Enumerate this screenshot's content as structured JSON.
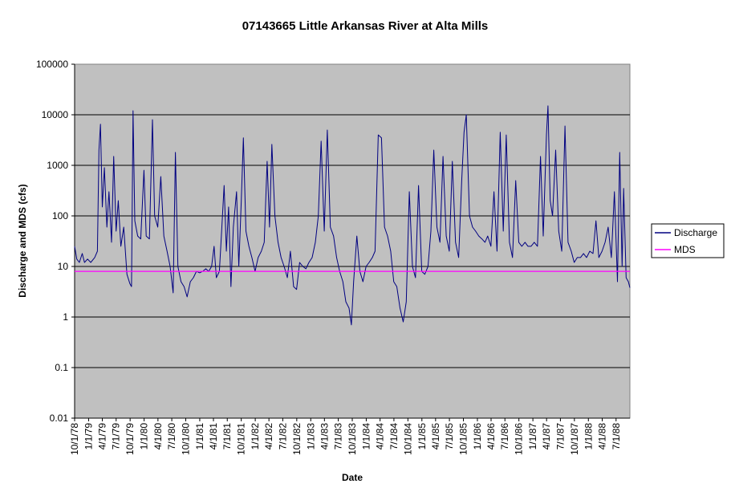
{
  "chart_data": {
    "type": "line",
    "title": "07143665 Little Arkansas River at Alta Mills",
    "xlabel": "Date",
    "ylabel": "Discharge and MDS (cfs)",
    "y_scale": "log",
    "ylim": [
      0.01,
      100000
    ],
    "y_ticks": [
      "0.01",
      "0.1",
      "1",
      "10",
      "100",
      "1000",
      "10000",
      "100000"
    ],
    "y_tick_values": [
      0.01,
      0.1,
      1,
      10,
      100,
      1000,
      10000,
      100000
    ],
    "xlim": [
      "1978-10-01",
      "1988-09-30"
    ],
    "x_ticks": [
      {
        "label": "10/1/78",
        "date": "1978-10-01"
      },
      {
        "label": "1/1/79",
        "date": "1979-01-01"
      },
      {
        "label": "4/1/79",
        "date": "1979-04-01"
      },
      {
        "label": "7/1/79",
        "date": "1979-07-01"
      },
      {
        "label": "10/1/79",
        "date": "1979-10-01"
      },
      {
        "label": "1/1/80",
        "date": "1980-01-01"
      },
      {
        "label": "4/1/80",
        "date": "1980-04-01"
      },
      {
        "label": "7/1/80",
        "date": "1980-07-01"
      },
      {
        "label": "10/1/80",
        "date": "1980-10-01"
      },
      {
        "label": "1/1/81",
        "date": "1981-01-01"
      },
      {
        "label": "4/1/81",
        "date": "1981-04-01"
      },
      {
        "label": "7/1/81",
        "date": "1981-07-01"
      },
      {
        "label": "10/1/81",
        "date": "1981-10-01"
      },
      {
        "label": "1/1/82",
        "date": "1982-01-01"
      },
      {
        "label": "4/1/82",
        "date": "1982-04-01"
      },
      {
        "label": "7/1/82",
        "date": "1982-07-01"
      },
      {
        "label": "10/1/82",
        "date": "1982-10-01"
      },
      {
        "label": "1/1/83",
        "date": "1983-01-01"
      },
      {
        "label": "4/1/83",
        "date": "1983-04-01"
      },
      {
        "label": "7/1/83",
        "date": "1983-07-01"
      },
      {
        "label": "10/1/83",
        "date": "1983-10-01"
      },
      {
        "label": "1/1/84",
        "date": "1984-01-01"
      },
      {
        "label": "4/1/84",
        "date": "1984-04-01"
      },
      {
        "label": "7/1/84",
        "date": "1984-07-01"
      },
      {
        "label": "10/1/84",
        "date": "1984-10-01"
      },
      {
        "label": "1/1/85",
        "date": "1985-01-01"
      },
      {
        "label": "4/1/85",
        "date": "1985-04-01"
      },
      {
        "label": "7/1/85",
        "date": "1985-07-01"
      },
      {
        "label": "10/1/85",
        "date": "1985-10-01"
      },
      {
        "label": "1/1/86",
        "date": "1986-01-01"
      },
      {
        "label": "4/1/86",
        "date": "1986-04-01"
      },
      {
        "label": "7/1/86",
        "date": "1986-07-01"
      },
      {
        "label": "10/1/86",
        "date": "1986-10-01"
      },
      {
        "label": "1/1/87",
        "date": "1987-01-01"
      },
      {
        "label": "4/1/87",
        "date": "1987-04-01"
      },
      {
        "label": "7/1/87",
        "date": "1987-07-01"
      },
      {
        "label": "10/1/87",
        "date": "1987-10-01"
      },
      {
        "label": "1/1/88",
        "date": "1988-01-01"
      },
      {
        "label": "4/1/88",
        "date": "1988-04-01"
      },
      {
        "label": "7/1/88",
        "date": "1988-07-01"
      }
    ],
    "grid": "horizontal major gridlines",
    "legend_position": "right",
    "series": [
      {
        "name": "Discharge",
        "color": "#000080",
        "points": [
          [
            "1978-10-01",
            25
          ],
          [
            "1978-10-15",
            14
          ],
          [
            "1978-11-01",
            12
          ],
          [
            "1978-11-20",
            18
          ],
          [
            "1978-12-05",
            12
          ],
          [
            "1978-12-25",
            14
          ],
          [
            "1979-01-15",
            12
          ],
          [
            "1979-02-10",
            15
          ],
          [
            "1979-02-28",
            20
          ],
          [
            "1979-03-10",
            2000
          ],
          [
            "1979-03-20",
            6500
          ],
          [
            "1979-04-01",
            150
          ],
          [
            "1979-04-15",
            900
          ],
          [
            "1979-05-01",
            60
          ],
          [
            "1979-05-15",
            300
          ],
          [
            "1979-06-01",
            30
          ],
          [
            "1979-06-15",
            1500
          ],
          [
            "1979-07-01",
            50
          ],
          [
            "1979-07-15",
            200
          ],
          [
            "1979-08-01",
            25
          ],
          [
            "1979-08-20",
            60
          ],
          [
            "1979-09-10",
            7
          ],
          [
            "1979-09-30",
            4.5
          ],
          [
            "1979-10-10",
            4
          ],
          [
            "1979-10-20",
            12000
          ],
          [
            "1979-11-01",
            80
          ],
          [
            "1979-11-20",
            40
          ],
          [
            "1979-12-10",
            35
          ],
          [
            "1979-12-31",
            800
          ],
          [
            "1980-01-15",
            40
          ],
          [
            "1980-02-05",
            35
          ],
          [
            "1980-02-25",
            8000
          ],
          [
            "1980-03-10",
            100
          ],
          [
            "1980-03-31",
            60
          ],
          [
            "1980-04-20",
            600
          ],
          [
            "1980-05-10",
            40
          ],
          [
            "1980-05-31",
            20
          ],
          [
            "1980-06-20",
            10
          ],
          [
            "1980-07-10",
            3
          ],
          [
            "1980-07-25",
            1800
          ],
          [
            "1980-08-10",
            10
          ],
          [
            "1980-08-31",
            5
          ],
          [
            "1980-09-20",
            4
          ],
          [
            "1980-10-10",
            2.5
          ],
          [
            "1980-10-31",
            5
          ],
          [
            "1980-11-20",
            6
          ],
          [
            "1980-12-10",
            8
          ],
          [
            "1980-12-31",
            7.5
          ],
          [
            "1981-01-20",
            8
          ],
          [
            "1981-02-10",
            9
          ],
          [
            "1981-03-01",
            8
          ],
          [
            "1981-03-20",
            10
          ],
          [
            "1981-04-05",
            25
          ],
          [
            "1981-04-20",
            6
          ],
          [
            "1981-05-10",
            8
          ],
          [
            "1981-05-25",
            50
          ],
          [
            "1981-06-10",
            400
          ],
          [
            "1981-06-25",
            20
          ],
          [
            "1981-07-10",
            150
          ],
          [
            "1981-07-25",
            4
          ],
          [
            "1981-08-10",
            60
          ],
          [
            "1981-08-31",
            300
          ],
          [
            "1981-09-15",
            10
          ],
          [
            "1981-10-01",
            200
          ],
          [
            "1981-10-15",
            3500
          ],
          [
            "1981-11-01",
            50
          ],
          [
            "1981-11-20",
            25
          ],
          [
            "1981-12-10",
            15
          ],
          [
            "1981-12-31",
            8
          ],
          [
            "1982-01-20",
            15
          ],
          [
            "1982-02-10",
            20
          ],
          [
            "1982-03-01",
            30
          ],
          [
            "1982-03-20",
            1200
          ],
          [
            "1982-04-05",
            60
          ],
          [
            "1982-04-20",
            2600
          ],
          [
            "1982-05-10",
            100
          ],
          [
            "1982-05-31",
            30
          ],
          [
            "1982-06-20",
            15
          ],
          [
            "1982-07-10",
            10
          ],
          [
            "1982-07-31",
            6
          ],
          [
            "1982-08-20",
            20
          ],
          [
            "1982-09-10",
            4
          ],
          [
            "1982-09-30",
            3.5
          ],
          [
            "1982-10-20",
            12
          ],
          [
            "1982-11-10",
            10
          ],
          [
            "1982-11-30",
            9
          ],
          [
            "1982-12-20",
            12
          ],
          [
            "1983-01-10",
            15
          ],
          [
            "1983-01-31",
            30
          ],
          [
            "1983-02-20",
            100
          ],
          [
            "1983-03-10",
            3000
          ],
          [
            "1983-03-31",
            50
          ],
          [
            "1983-04-20",
            5000
          ],
          [
            "1983-05-10",
            60
          ],
          [
            "1983-05-31",
            40
          ],
          [
            "1983-06-20",
            15
          ],
          [
            "1983-07-10",
            8
          ],
          [
            "1983-07-31",
            5
          ],
          [
            "1983-08-20",
            2
          ],
          [
            "1983-09-10",
            1.5
          ],
          [
            "1983-09-25",
            0.7
          ],
          [
            "1983-10-10",
            5
          ],
          [
            "1983-10-31",
            40
          ],
          [
            "1983-11-20",
            8
          ],
          [
            "1983-12-10",
            5
          ],
          [
            "1983-12-31",
            10
          ],
          [
            "1984-01-20",
            12
          ],
          [
            "1984-02-10",
            15
          ],
          [
            "1984-02-28",
            20
          ],
          [
            "1984-03-20",
            4000
          ],
          [
            "1984-04-10",
            3500
          ],
          [
            "1984-04-30",
            60
          ],
          [
            "1984-05-20",
            40
          ],
          [
            "1984-06-10",
            20
          ],
          [
            "1984-06-30",
            5
          ],
          [
            "1984-07-20",
            4
          ],
          [
            "1984-08-10",
            1.5
          ],
          [
            "1984-08-31",
            0.8
          ],
          [
            "1984-09-20",
            2
          ],
          [
            "1984-10-10",
            300
          ],
          [
            "1984-10-31",
            10
          ],
          [
            "1984-11-20",
            6
          ],
          [
            "1984-12-10",
            400
          ],
          [
            "1984-12-31",
            8
          ],
          [
            "1985-01-20",
            7
          ],
          [
            "1985-02-10",
            10
          ],
          [
            "1985-03-01",
            50
          ],
          [
            "1985-03-20",
            2000
          ],
          [
            "1985-04-10",
            60
          ],
          [
            "1985-04-30",
            30
          ],
          [
            "1985-05-20",
            1500
          ],
          [
            "1985-06-10",
            40
          ],
          [
            "1985-06-30",
            20
          ],
          [
            "1985-07-20",
            1200
          ],
          [
            "1985-08-10",
            30
          ],
          [
            "1985-08-31",
            15
          ],
          [
            "1985-09-20",
            500
          ],
          [
            "1985-10-05",
            4500
          ],
          [
            "1985-10-20",
            10000
          ],
          [
            "1985-11-10",
            100
          ],
          [
            "1985-11-30",
            60
          ],
          [
            "1985-12-20",
            50
          ],
          [
            "1986-01-10",
            40
          ],
          [
            "1986-01-31",
            35
          ],
          [
            "1986-02-20",
            30
          ],
          [
            "1986-03-10",
            40
          ],
          [
            "1986-03-31",
            25
          ],
          [
            "1986-04-20",
            300
          ],
          [
            "1986-05-10",
            20
          ],
          [
            "1986-05-31",
            4500
          ],
          [
            "1986-06-20",
            50
          ],
          [
            "1986-07-10",
            4000
          ],
          [
            "1986-07-31",
            30
          ],
          [
            "1986-08-20",
            15
          ],
          [
            "1986-09-10",
            500
          ],
          [
            "1986-09-30",
            30
          ],
          [
            "1986-10-20",
            25
          ],
          [
            "1986-11-10",
            30
          ],
          [
            "1986-11-30",
            25
          ],
          [
            "1986-12-20",
            25
          ],
          [
            "1987-01-10",
            30
          ],
          [
            "1987-01-31",
            25
          ],
          [
            "1987-02-20",
            1500
          ],
          [
            "1987-03-10",
            40
          ],
          [
            "1987-03-31",
            4000
          ],
          [
            "1987-04-10",
            15000
          ],
          [
            "1987-04-25",
            200
          ],
          [
            "1987-05-10",
            100
          ],
          [
            "1987-05-31",
            2000
          ],
          [
            "1987-06-20",
            50
          ],
          [
            "1987-07-10",
            20
          ],
          [
            "1987-07-31",
            6000
          ],
          [
            "1987-08-20",
            30
          ],
          [
            "1987-09-10",
            20
          ],
          [
            "1987-09-30",
            12
          ],
          [
            "1987-10-20",
            15
          ],
          [
            "1987-11-10",
            15
          ],
          [
            "1987-11-30",
            18
          ],
          [
            "1987-12-20",
            15
          ],
          [
            "1988-01-10",
            20
          ],
          [
            "1988-01-31",
            18
          ],
          [
            "1988-02-20",
            80
          ],
          [
            "1988-03-10",
            15
          ],
          [
            "1988-03-31",
            20
          ],
          [
            "1988-04-20",
            30
          ],
          [
            "1988-05-10",
            60
          ],
          [
            "1988-05-31",
            15
          ],
          [
            "1988-06-20",
            300
          ],
          [
            "1988-07-10",
            5
          ],
          [
            "1988-07-25",
            1800
          ],
          [
            "1988-08-10",
            10
          ],
          [
            "1988-08-20",
            350
          ],
          [
            "1988-09-05",
            6
          ],
          [
            "1988-09-20",
            5
          ],
          [
            "1988-09-30",
            3.8
          ]
        ]
      },
      {
        "name": "MDS",
        "color": "#ff00ff",
        "points": [
          [
            "1978-10-01",
            8
          ],
          [
            "1988-09-30",
            8
          ]
        ]
      }
    ]
  }
}
